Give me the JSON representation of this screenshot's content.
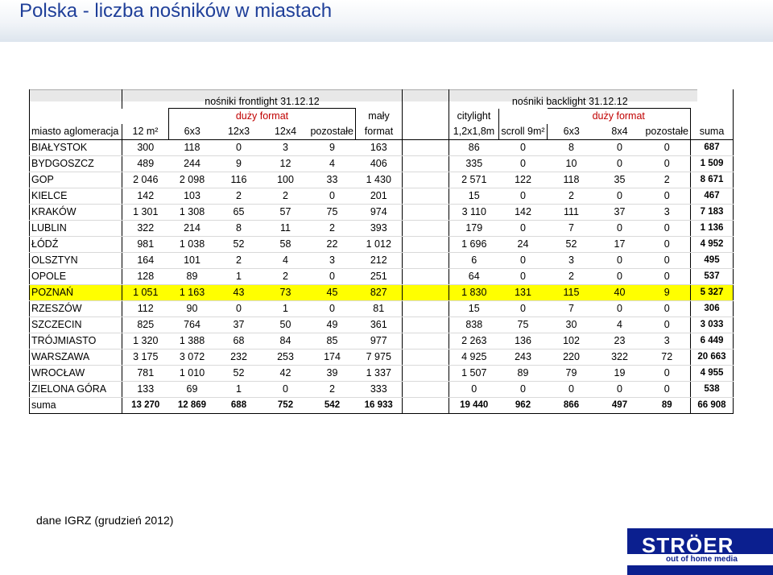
{
  "title": "Polska - liczba nośników w miastach",
  "groups": {
    "frontlight": "nośniki frontlight 31.12.12",
    "backlight": "nośniki backlight 31.12.12",
    "duzy_front": "duży format",
    "duzy_back": "duży format",
    "maly_1": "mały",
    "maly_2": "format",
    "citylight": "citylight"
  },
  "columns": [
    "miasto aglomeracja",
    "12 m²",
    "6x3",
    "12x3",
    "12x4",
    "pozostałe",
    "format",
    "1,2x1,8m",
    "scroll 9m²",
    "6x3",
    "8x4",
    "pozostałe",
    "suma"
  ],
  "rows": [
    {
      "city": "BIAŁYSTOK",
      "values": [
        "300",
        "118",
        "0",
        "3",
        "9",
        "163",
        "86",
        "0",
        "8",
        "0",
        "0"
      ],
      "sum": "687"
    },
    {
      "city": "BYDGOSZCZ",
      "values": [
        "489",
        "244",
        "9",
        "12",
        "4",
        "406",
        "335",
        "0",
        "10",
        "0",
        "0"
      ],
      "sum": "1 509"
    },
    {
      "city": "GOP",
      "values": [
        "2 046",
        "2 098",
        "116",
        "100",
        "33",
        "1 430",
        "2 571",
        "122",
        "118",
        "35",
        "2"
      ],
      "sum": "8 671"
    },
    {
      "city": "KIELCE",
      "values": [
        "142",
        "103",
        "2",
        "2",
        "0",
        "201",
        "15",
        "0",
        "2",
        "0",
        "0"
      ],
      "sum": "467"
    },
    {
      "city": "KRAKÓW",
      "values": [
        "1 301",
        "1 308",
        "65",
        "57",
        "75",
        "974",
        "3 110",
        "142",
        "111",
        "37",
        "3"
      ],
      "sum": "7 183"
    },
    {
      "city": "LUBLIN",
      "values": [
        "322",
        "214",
        "8",
        "11",
        "2",
        "393",
        "179",
        "0",
        "7",
        "0",
        "0"
      ],
      "sum": "1 136"
    },
    {
      "city": "ŁÓDŹ",
      "values": [
        "981",
        "1 038",
        "52",
        "58",
        "22",
        "1 012",
        "1 696",
        "24",
        "52",
        "17",
        "0"
      ],
      "sum": "4 952"
    },
    {
      "city": "OLSZTYN",
      "values": [
        "164",
        "101",
        "2",
        "4",
        "3",
        "212",
        "6",
        "0",
        "3",
        "0",
        "0"
      ],
      "sum": "495"
    },
    {
      "city": "OPOLE",
      "values": [
        "128",
        "89",
        "1",
        "2",
        "0",
        "251",
        "64",
        "0",
        "2",
        "0",
        "0"
      ],
      "sum": "537"
    },
    {
      "city": "POZNAŃ",
      "values": [
        "1 051",
        "1 163",
        "43",
        "73",
        "45",
        "827",
        "1 830",
        "131",
        "115",
        "40",
        "9"
      ],
      "sum": "5 327",
      "highlight": true
    },
    {
      "city": "RZESZÓW",
      "values": [
        "112",
        "90",
        "0",
        "1",
        "0",
        "81",
        "15",
        "0",
        "7",
        "0",
        "0"
      ],
      "sum": "306"
    },
    {
      "city": "SZCZECIN",
      "values": [
        "825",
        "764",
        "37",
        "50",
        "49",
        "361",
        "838",
        "75",
        "30",
        "4",
        "0"
      ],
      "sum": "3 033"
    },
    {
      "city": "TRÓJMIASTO",
      "values": [
        "1 320",
        "1 388",
        "68",
        "84",
        "85",
        "977",
        "2 263",
        "136",
        "102",
        "23",
        "3"
      ],
      "sum": "6 449"
    },
    {
      "city": "WARSZAWA",
      "values": [
        "3 175",
        "3 072",
        "232",
        "253",
        "174",
        "7 975",
        "4 925",
        "243",
        "220",
        "322",
        "72"
      ],
      "sum": "20 663"
    },
    {
      "city": "WROCŁAW",
      "values": [
        "781",
        "1 010",
        "52",
        "42",
        "39",
        "1 337",
        "1 507",
        "89",
        "79",
        "19",
        "0"
      ],
      "sum": "4 955"
    },
    {
      "city": "ZIELONA GÓRA",
      "values": [
        "133",
        "69",
        "1",
        "0",
        "2",
        "333",
        "0",
        "0",
        "0",
        "0",
        "0"
      ],
      "sum": "538"
    }
  ],
  "total": {
    "label": "suma",
    "values": [
      "13 270",
      "12 869",
      "688",
      "752",
      "542",
      "16 933",
      "19 440",
      "962",
      "866",
      "497",
      "89"
    ],
    "sum": "66 908"
  },
  "source_note": "dane IGRZ (grudzień 2012)",
  "logo": {
    "name": "STRÖER",
    "tagline": "out of home media"
  },
  "colors": {
    "title": "#1f3f99",
    "highlight": "#ffff00",
    "duzy_format": "#c00000",
    "logo_bg": "#0b1f8f"
  }
}
